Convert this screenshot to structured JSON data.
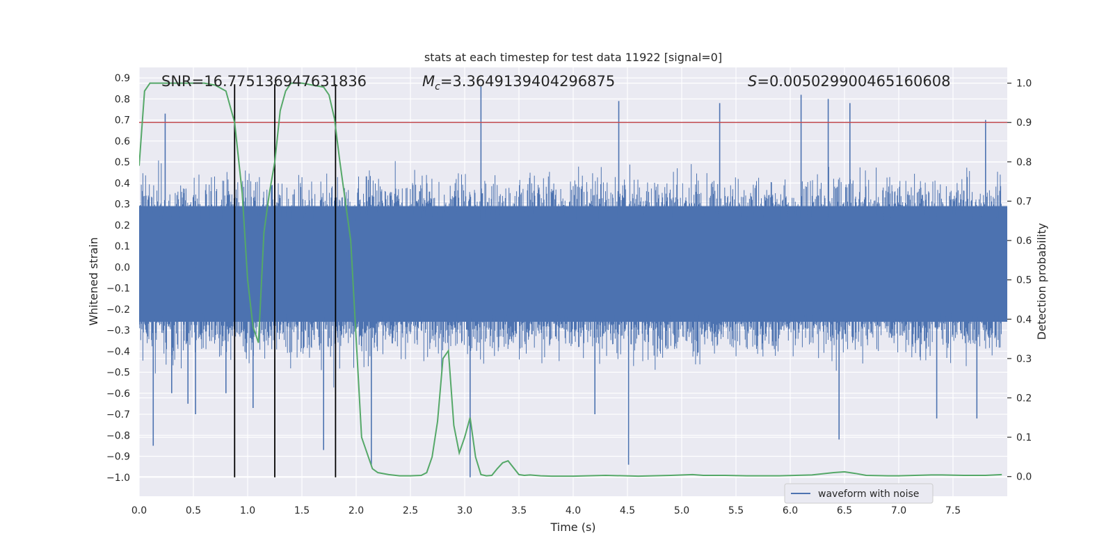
{
  "chart_data": {
    "type": "line",
    "title": "stats at each timestep for test data 11922 [signal=0]",
    "xlabel": "Time (s)",
    "ylabel": "Whitened strain",
    "ylabel_right": "Detection probability",
    "xlim": [
      0.0,
      8.0
    ],
    "ylim": [
      -1.09,
      0.95
    ],
    "ylim_right": [
      -0.05,
      1.04
    ],
    "x_ticks": [
      0.0,
      0.5,
      1.0,
      1.5,
      2.0,
      2.5,
      3.0,
      3.5,
      4.0,
      4.5,
      5.0,
      5.5,
      6.0,
      6.5,
      7.0,
      7.5
    ],
    "x_tick_labels": [
      "0.0",
      "0.5",
      "1.0",
      "1.5",
      "2.0",
      "2.5",
      "3.0",
      "3.5",
      "4.0",
      "4.5",
      "5.0",
      "5.5",
      "6.0",
      "6.5",
      "7.0",
      "7.5"
    ],
    "y_ticks": [
      0.9,
      0.8,
      0.7,
      0.6,
      0.5,
      0.4,
      0.3,
      0.2,
      0.1,
      0.0,
      -0.1,
      -0.2,
      -0.3,
      -0.4,
      -0.5,
      -0.6,
      -0.7,
      -0.8,
      -0.9,
      -1.0
    ],
    "y_tick_labels": [
      "0.9",
      "0.8",
      "0.7",
      "0.6",
      "0.5",
      "0.4",
      "0.3",
      "0.2",
      "0.1",
      "0.0",
      "−0.1",
      "−0.2",
      "−0.3",
      "−0.4",
      "−0.5",
      "−0.6",
      "−0.7",
      "−0.8",
      "−0.9",
      "−1.0"
    ],
    "y_right_ticks": [
      1.0,
      0.9,
      0.8,
      0.7,
      0.6,
      0.5,
      0.4,
      0.3,
      0.2,
      0.1,
      0.0
    ],
    "y_right_tick_labels": [
      "1.0",
      "0.9",
      "0.8",
      "0.7",
      "0.6",
      "0.5",
      "0.4",
      "0.3",
      "0.2",
      "0.1",
      "0.0"
    ],
    "threshold": {
      "value": 0.9,
      "axis": "right",
      "color": "#c44e52"
    },
    "vlines": {
      "x": [
        0.88,
        1.25,
        1.81
      ],
      "ymin": -1.0,
      "ymax": 0.87,
      "color": "#000000"
    },
    "annotations": {
      "snr": "SNR=16.775136947631836",
      "mc_symbol": "M",
      "mc_subscript": "c",
      "mc_value": "=3.3649139404296875",
      "s_symbol": "S",
      "s_value": "=0.005029900465160608"
    },
    "series": [
      {
        "name": "waveform with noise",
        "axis": "left",
        "color": "#4c72b0",
        "style": "dense-noise",
        "band": [
          -0.26,
          0.29
        ],
        "envelope_typical": [
          -0.45,
          0.45
        ],
        "peaks": [
          {
            "x": 0.13,
            "y": -0.85
          },
          {
            "x": 0.24,
            "y": 0.73
          },
          {
            "x": 0.3,
            "y": -0.6
          },
          {
            "x": 0.45,
            "y": -0.65
          },
          {
            "x": 0.52,
            "y": -0.7
          },
          {
            "x": 0.8,
            "y": -0.6
          },
          {
            "x": 1.05,
            "y": -0.67
          },
          {
            "x": 1.7,
            "y": -0.87
          },
          {
            "x": 2.14,
            "y": -0.94
          },
          {
            "x": 3.05,
            "y": -1.0
          },
          {
            "x": 3.15,
            "y": 0.86
          },
          {
            "x": 4.2,
            "y": -0.7
          },
          {
            "x": 4.42,
            "y": 0.79
          },
          {
            "x": 4.51,
            "y": -0.94
          },
          {
            "x": 5.35,
            "y": 0.78
          },
          {
            "x": 6.1,
            "y": 0.82
          },
          {
            "x": 6.35,
            "y": 0.8
          },
          {
            "x": 6.45,
            "y": -0.82
          },
          {
            "x": 6.55,
            "y": 0.78
          },
          {
            "x": 7.35,
            "y": -0.72
          },
          {
            "x": 7.72,
            "y": -0.72
          },
          {
            "x": 7.8,
            "y": 0.7
          }
        ]
      },
      {
        "name": "detection probability",
        "axis": "right",
        "color": "#55a868",
        "x": [
          0.0,
          0.05,
          0.1,
          0.2,
          0.4,
          0.6,
          0.7,
          0.8,
          0.85,
          0.88,
          0.95,
          1.0,
          1.05,
          1.1,
          1.15,
          1.2,
          1.25,
          1.3,
          1.35,
          1.4,
          1.5,
          1.6,
          1.7,
          1.75,
          1.8,
          1.85,
          1.95,
          2.05,
          2.15,
          2.2,
          2.3,
          2.4,
          2.5,
          2.6,
          2.65,
          2.7,
          2.75,
          2.8,
          2.85,
          2.9,
          2.95,
          3.0,
          3.05,
          3.1,
          3.15,
          3.2,
          3.25,
          3.3,
          3.35,
          3.4,
          3.5,
          3.55,
          3.6,
          3.7,
          3.8,
          4.0,
          4.3,
          4.6,
          4.9,
          5.1,
          5.2,
          5.4,
          5.6,
          5.9,
          6.2,
          6.4,
          6.5,
          6.6,
          6.7,
          6.9,
          7.0,
          7.3,
          7.4,
          7.6,
          7.8,
          7.95
        ],
        "values": [
          0.79,
          0.98,
          1.0,
          1.0,
          1.0,
          1.0,
          0.995,
          0.98,
          0.93,
          0.9,
          0.72,
          0.5,
          0.38,
          0.34,
          0.62,
          0.72,
          0.8,
          0.93,
          0.98,
          1.0,
          1.0,
          0.995,
          0.99,
          0.97,
          0.91,
          0.8,
          0.6,
          0.1,
          0.02,
          0.01,
          0.005,
          0.002,
          0.002,
          0.003,
          0.01,
          0.05,
          0.14,
          0.3,
          0.32,
          0.13,
          0.06,
          0.1,
          0.15,
          0.05,
          0.005,
          0.002,
          0.003,
          0.02,
          0.035,
          0.04,
          0.005,
          0.003,
          0.004,
          0.002,
          0.001,
          0.001,
          0.003,
          0.001,
          0.003,
          0.005,
          0.003,
          0.003,
          0.002,
          0.002,
          0.004,
          0.01,
          0.012,
          0.008,
          0.003,
          0.002,
          0.002,
          0.004,
          0.004,
          0.003,
          0.003,
          0.005
        ]
      }
    ],
    "legend": {
      "label": "waveform with noise",
      "placement": "lower-right"
    },
    "grid": true
  }
}
